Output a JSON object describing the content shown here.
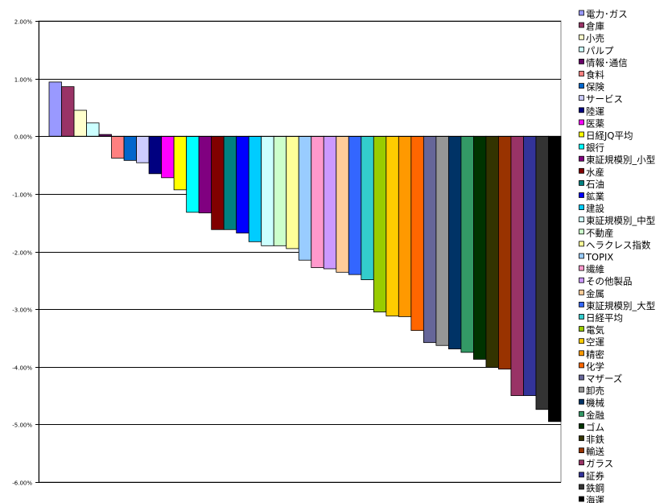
{
  "chart_data": {
    "type": "bar",
    "title": "",
    "xlabel": "",
    "ylabel": "",
    "ylim": [
      -6,
      2
    ],
    "yticks": [
      "2.00%",
      "1.00%",
      "0.00%",
      "-1.00%",
      "-2.00%",
      "-3.00%",
      "-4.00%",
      "-5.00%",
      "-6.00%"
    ],
    "grid": "horizontal",
    "legend": "right",
    "unit": "%",
    "series": [
      {
        "name": "電力･ガス",
        "value": 0.94,
        "color": "#9999FF"
      },
      {
        "name": "倉庫",
        "value": 0.86,
        "color": "#993366"
      },
      {
        "name": "小売",
        "value": 0.45,
        "color": "#FFFFCC"
      },
      {
        "name": "パルプ",
        "value": 0.23,
        "color": "#CCFFFF"
      },
      {
        "name": "情報･通信",
        "value": 0.03,
        "color": "#660066"
      },
      {
        "name": "食料",
        "value": -0.38,
        "color": "#FF8080"
      },
      {
        "name": "保険",
        "value": -0.42,
        "color": "#0066CC"
      },
      {
        "name": "サービス",
        "value": -0.46,
        "color": "#CCCCFF"
      },
      {
        "name": "陸運",
        "value": -0.65,
        "color": "#000080"
      },
      {
        "name": "医薬",
        "value": -0.72,
        "color": "#FF00FF"
      },
      {
        "name": "日経JQ平均",
        "value": -0.93,
        "color": "#FFFF00"
      },
      {
        "name": "銀行",
        "value": -1.32,
        "color": "#00FFFF"
      },
      {
        "name": "東証規模別_小型",
        "value": -1.33,
        "color": "#800080"
      },
      {
        "name": "水産",
        "value": -1.62,
        "color": "#800000"
      },
      {
        "name": "石油",
        "value": -1.62,
        "color": "#008080"
      },
      {
        "name": "鉱業",
        "value": -1.68,
        "color": "#0000FF"
      },
      {
        "name": "建設",
        "value": -1.83,
        "color": "#00CCFF"
      },
      {
        "name": "東証規模別_中型",
        "value": -1.9,
        "color": "#CCFFFF"
      },
      {
        "name": "不動産",
        "value": -1.9,
        "color": "#CCFFCC"
      },
      {
        "name": "ヘラクレス指数",
        "value": -1.95,
        "color": "#FFFF99"
      },
      {
        "name": "TOPIX",
        "value": -2.15,
        "color": "#99CCFF"
      },
      {
        "name": "繊維",
        "value": -2.28,
        "color": "#FF99CC"
      },
      {
        "name": "その他製品",
        "value": -2.3,
        "color": "#CC99FF"
      },
      {
        "name": "金属",
        "value": -2.36,
        "color": "#FFCC99"
      },
      {
        "name": "東証規模別_大型",
        "value": -2.4,
        "color": "#3366FF"
      },
      {
        "name": "日経平均",
        "value": -2.49,
        "color": "#33CCCC"
      },
      {
        "name": "電気",
        "value": -3.05,
        "color": "#99CC00"
      },
      {
        "name": "空運",
        "value": -3.12,
        "color": "#FFCC00"
      },
      {
        "name": "精密",
        "value": -3.13,
        "color": "#FF9900"
      },
      {
        "name": "化学",
        "value": -3.37,
        "color": "#FF6600"
      },
      {
        "name": "マザーズ",
        "value": -3.58,
        "color": "#666699"
      },
      {
        "name": "卸売",
        "value": -3.63,
        "color": "#969696"
      },
      {
        "name": "機械",
        "value": -3.69,
        "color": "#003366"
      },
      {
        "name": "金融",
        "value": -3.75,
        "color": "#339966"
      },
      {
        "name": "ゴム",
        "value": -3.87,
        "color": "#003300"
      },
      {
        "name": "非鉄",
        "value": -4.01,
        "color": "#333300"
      },
      {
        "name": "輸送",
        "value": -4.04,
        "color": "#993300"
      },
      {
        "name": "ガラス",
        "value": -4.5,
        "color": "#993366"
      },
      {
        "name": "証券",
        "value": -4.5,
        "color": "#333399"
      },
      {
        "name": "鉄鋼",
        "value": -4.74,
        "color": "#333333"
      },
      {
        "name": "海運",
        "value": -4.95,
        "color": "#000000"
      }
    ]
  }
}
